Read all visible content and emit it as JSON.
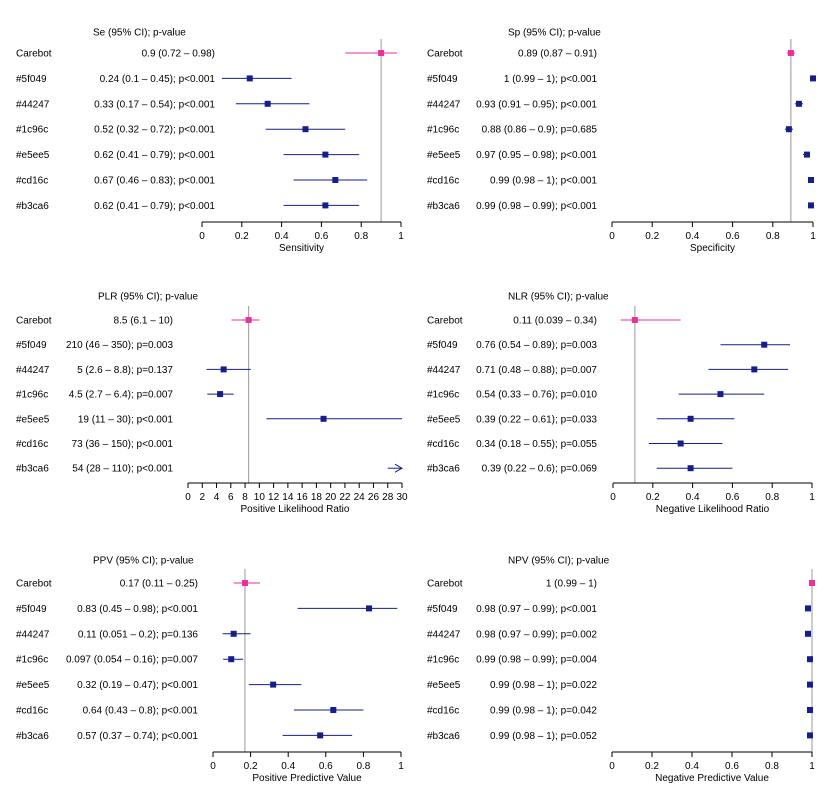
{
  "colors": {
    "reference": "#ee2e9a",
    "comparator": "#141e8c",
    "axis": "#000000",
    "refline": "#999999"
  },
  "chart_data": [
    {
      "type": "forest",
      "header": "Se (95% CI); p-value",
      "xlabel": "Sensitivity",
      "xlim": [
        0,
        1
      ],
      "ticks": [
        0,
        0.2,
        0.4,
        0.6,
        0.8,
        1
      ],
      "tick_labels": [
        "0",
        "0.2",
        "0.4",
        "0.6",
        "0.8",
        "1"
      ],
      "ref_value": 0.9,
      "rows": [
        {
          "name": "Carebot",
          "label": "0.9 (0.72 – 0.98)",
          "est": 0.9,
          "lo": 0.72,
          "hi": 0.98,
          "ref": true
        },
        {
          "name": "#5f049",
          "label": "0.24 (0.1 – 0.45); p<0.001",
          "est": 0.24,
          "lo": 0.1,
          "hi": 0.45
        },
        {
          "name": "#44247",
          "label": "0.33 (0.17 – 0.54); p<0.001",
          "est": 0.33,
          "lo": 0.17,
          "hi": 0.54
        },
        {
          "name": "#1c96c",
          "label": "0.52 (0.32 – 0.72); p<0.001",
          "est": 0.52,
          "lo": 0.32,
          "hi": 0.72
        },
        {
          "name": "#e5ee5",
          "label": "0.62 (0.41 – 0.79); p<0.001",
          "est": 0.62,
          "lo": 0.41,
          "hi": 0.79
        },
        {
          "name": "#cd16c",
          "label": "0.67 (0.46 – 0.83); p<0.001",
          "est": 0.67,
          "lo": 0.46,
          "hi": 0.83
        },
        {
          "name": "#b3ca6",
          "label": "0.62 (0.41 – 0.79); p<0.001",
          "est": 0.62,
          "lo": 0.41,
          "hi": 0.79
        }
      ]
    },
    {
      "type": "forest",
      "header": "Sp (95% CI); p-value",
      "xlabel": "Specificity",
      "xlim": [
        0,
        1
      ],
      "ticks": [
        0,
        0.2,
        0.4,
        0.6,
        0.8,
        1
      ],
      "tick_labels": [
        "0",
        "0.2",
        "0.4",
        "0.6",
        "0.8",
        "1"
      ],
      "ref_value": 0.89,
      "rows": [
        {
          "name": "Carebot",
          "label": "0.89 (0.87 – 0.91)",
          "est": 0.89,
          "lo": 0.87,
          "hi": 0.91,
          "ref": true
        },
        {
          "name": "#5f049",
          "label": "1 (0.99 – 1); p<0.001",
          "est": 1.0,
          "lo": 0.99,
          "hi": 1.0
        },
        {
          "name": "#44247",
          "label": "0.93 (0.91 – 0.95); p<0.001",
          "est": 0.93,
          "lo": 0.91,
          "hi": 0.95
        },
        {
          "name": "#1c96c",
          "label": "0.88 (0.86 – 0.9); p=0.685",
          "est": 0.88,
          "lo": 0.86,
          "hi": 0.9
        },
        {
          "name": "#e5ee5",
          "label": "0.97 (0.95 – 0.98); p<0.001",
          "est": 0.97,
          "lo": 0.95,
          "hi": 0.98
        },
        {
          "name": "#cd16c",
          "label": "0.99 (0.98 – 1); p<0.001",
          "est": 0.99,
          "lo": 0.98,
          "hi": 1.0
        },
        {
          "name": "#b3ca6",
          "label": "0.99 (0.98 – 0.99); p<0.001",
          "est": 0.99,
          "lo": 0.98,
          "hi": 0.99
        }
      ]
    },
    {
      "type": "forest",
      "header": "PLR (95% CI); p-value",
      "xlabel": "Positive Likelihood Ratio",
      "xlim": [
        0,
        30
      ],
      "ticks": [
        0,
        2,
        4,
        6,
        8,
        10,
        12,
        14,
        16,
        18,
        20,
        22,
        24,
        26,
        28,
        30
      ],
      "tick_labels": [
        "0",
        "2",
        "4",
        "6",
        "8",
        "10",
        "12",
        "14",
        "16",
        "18",
        "20",
        "22",
        "24",
        "26",
        "28",
        "30"
      ],
      "ref_value": 8.5,
      "rows": [
        {
          "name": "Carebot",
          "label": "8.5 (6.1 – 10)",
          "est": 8.5,
          "lo": 6.1,
          "hi": 10,
          "ref": true
        },
        {
          "name": "#5f049",
          "label": "210 (46 – 350); p=0.003",
          "est": 210,
          "lo": 46,
          "hi": 350
        },
        {
          "name": "#44247",
          "label": "5 (2.6 – 8.8); p=0.137",
          "est": 5,
          "lo": 2.6,
          "hi": 8.8
        },
        {
          "name": "#1c96c",
          "label": "4.5 (2.7 – 6.4); p=0.007",
          "est": 4.5,
          "lo": 2.7,
          "hi": 6.4
        },
        {
          "name": "#e5ee5",
          "label": "19 (11 – 30); p<0.001",
          "est": 19,
          "lo": 11,
          "hi": 30
        },
        {
          "name": "#cd16c",
          "label": "73 (36 – 150); p<0.001",
          "est": 73,
          "lo": 36,
          "hi": 150
        },
        {
          "name": "#b3ca6",
          "label": "54 (28 – 110); p<0.001",
          "est": 54,
          "lo": 28,
          "hi": 110
        }
      ]
    },
    {
      "type": "forest",
      "header": "NLR (95% CI); p-value",
      "xlabel": "Negative Likelihood Ratio",
      "xlim": [
        0,
        1
      ],
      "ticks": [
        0,
        0.2,
        0.4,
        0.6,
        0.8,
        1
      ],
      "tick_labels": [
        "0",
        "0.2",
        "0.4",
        "0.6",
        "0.8",
        "1"
      ],
      "ref_value": 0.11,
      "rows": [
        {
          "name": "Carebot",
          "label": "0.11 (0.039 – 0.34)",
          "est": 0.11,
          "lo": 0.039,
          "hi": 0.34,
          "ref": true
        },
        {
          "name": "#5f049",
          "label": "0.76 (0.54 – 0.89); p=0.003",
          "est": 0.76,
          "lo": 0.54,
          "hi": 0.89
        },
        {
          "name": "#44247",
          "label": "0.71 (0.48 – 0.88); p=0.007",
          "est": 0.71,
          "lo": 0.48,
          "hi": 0.88
        },
        {
          "name": "#1c96c",
          "label": "0.54 (0.33 – 0.76); p=0.010",
          "est": 0.54,
          "lo": 0.33,
          "hi": 0.76
        },
        {
          "name": "#e5ee5",
          "label": "0.39 (0.22 – 0.61); p=0.033",
          "est": 0.39,
          "lo": 0.22,
          "hi": 0.61
        },
        {
          "name": "#cd16c",
          "label": "0.34 (0.18 – 0.55); p=0.055",
          "est": 0.34,
          "lo": 0.18,
          "hi": 0.55
        },
        {
          "name": "#b3ca6",
          "label": "0.39 (0.22 – 0.6); p=0.069",
          "est": 0.39,
          "lo": 0.22,
          "hi": 0.6
        }
      ]
    },
    {
      "type": "forest",
      "header": "PPV (95% CI); p-value",
      "xlabel": "Positive Predictive Value",
      "xlim": [
        0,
        1
      ],
      "ticks": [
        0,
        0.2,
        0.4,
        0.6,
        0.8,
        1
      ],
      "tick_labels": [
        "0",
        "0.2",
        "0.4",
        "0.6",
        "0.8",
        "1"
      ],
      "ref_value": 0.17,
      "rows": [
        {
          "name": "Carebot",
          "label": "0.17 (0.11 – 0.25)",
          "est": 0.17,
          "lo": 0.11,
          "hi": 0.25,
          "ref": true
        },
        {
          "name": "#5f049",
          "label": "0.83 (0.45 – 0.98); p<0.001",
          "est": 0.83,
          "lo": 0.45,
          "hi": 0.98
        },
        {
          "name": "#44247",
          "label": "0.11 (0.051 – 0.2); p=0.136",
          "est": 0.11,
          "lo": 0.051,
          "hi": 0.2
        },
        {
          "name": "#1c96c",
          "label": "0.097 (0.054 – 0.16); p=0.007",
          "est": 0.097,
          "lo": 0.054,
          "hi": 0.16
        },
        {
          "name": "#e5ee5",
          "label": "0.32 (0.19 – 0.47); p<0.001",
          "est": 0.32,
          "lo": 0.19,
          "hi": 0.47
        },
        {
          "name": "#cd16c",
          "label": "0.64 (0.43 – 0.8); p<0.001",
          "est": 0.64,
          "lo": 0.43,
          "hi": 0.8
        },
        {
          "name": "#b3ca6",
          "label": "0.57 (0.37 – 0.74); p<0.001",
          "est": 0.57,
          "lo": 0.37,
          "hi": 0.74
        }
      ]
    },
    {
      "type": "forest",
      "header": "NPV (95% CI); p-value",
      "xlabel": "Negative Predictive Value",
      "xlim": [
        0,
        1
      ],
      "ticks": [
        0,
        0.2,
        0.4,
        0.6,
        0.8,
        1
      ],
      "tick_labels": [
        "0",
        "0.2",
        "0.4",
        "0.6",
        "0.8",
        "1"
      ],
      "ref_value": 1.0,
      "rows": [
        {
          "name": "Carebot",
          "label": "1 (0.99 – 1)",
          "est": 1.0,
          "lo": 0.99,
          "hi": 1.0,
          "ref": true
        },
        {
          "name": "#5f049",
          "label": "0.98 (0.97 – 0.99); p<0.001",
          "est": 0.98,
          "lo": 0.97,
          "hi": 0.99
        },
        {
          "name": "#44247",
          "label": "0.98 (0.97 – 0.99); p=0.002",
          "est": 0.98,
          "lo": 0.97,
          "hi": 0.99
        },
        {
          "name": "#1c96c",
          "label": "0.99 (0.98 – 0.99); p=0.004",
          "est": 0.99,
          "lo": 0.98,
          "hi": 0.99
        },
        {
          "name": "#e5ee5",
          "label": "0.99 (0.98 – 1); p=0.022",
          "est": 0.99,
          "lo": 0.98,
          "hi": 1.0
        },
        {
          "name": "#cd16c",
          "label": "0.99 (0.98 – 1); p=0.042",
          "est": 0.99,
          "lo": 0.98,
          "hi": 1.0
        },
        {
          "name": "#b3ca6",
          "label": "0.99 (0.98 – 1); p=0.052",
          "est": 0.99,
          "lo": 0.98,
          "hi": 1.0
        }
      ]
    }
  ]
}
